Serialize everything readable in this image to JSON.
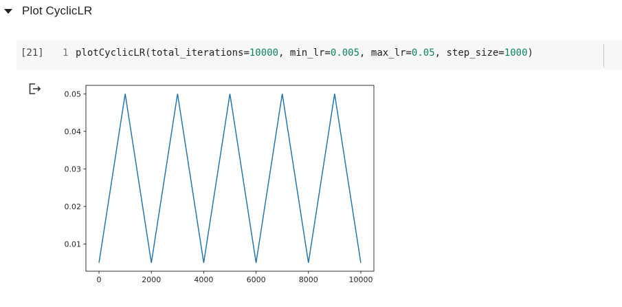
{
  "section": {
    "title": "Plot CyclicLR",
    "collapse_icon": "caret-down-icon"
  },
  "cell": {
    "execution_count": "[21]",
    "line_number": "1",
    "code": {
      "func": "plotCyclicLR(",
      "a1": "total_iterations=",
      "v1": "10000",
      "a2": ", min_lr=",
      "v2": "0.005",
      "a3": ", max_lr=",
      "v3": "0.05",
      "a4": ", step_size=",
      "v4": "1000",
      "close": ")"
    }
  },
  "output": {
    "icon": "output-redirect-icon"
  },
  "chart_data": {
    "type": "line",
    "title": "",
    "xlabel": "",
    "ylabel": "",
    "xlim": [
      -500,
      10500
    ],
    "ylim": [
      0.00275,
      0.05225
    ],
    "xticks": [
      0,
      2000,
      4000,
      6000,
      8000,
      10000
    ],
    "xtick_labels": [
      "0",
      "2000",
      "4000",
      "6000",
      "8000",
      "10000"
    ],
    "yticks": [
      0.01,
      0.02,
      0.03,
      0.04,
      0.05
    ],
    "ytick_labels": [
      "0.01",
      "0.02",
      "0.03",
      "0.04",
      "0.05"
    ],
    "grid": false,
    "series": [
      {
        "color": "#1f77b4",
        "x": [
          0,
          1000,
          2000,
          3000,
          4000,
          5000,
          6000,
          7000,
          8000,
          9000,
          10000
        ],
        "y": [
          0.005,
          0.05,
          0.005,
          0.05,
          0.005,
          0.05,
          0.005,
          0.05,
          0.005,
          0.05,
          0.005
        ]
      }
    ]
  }
}
